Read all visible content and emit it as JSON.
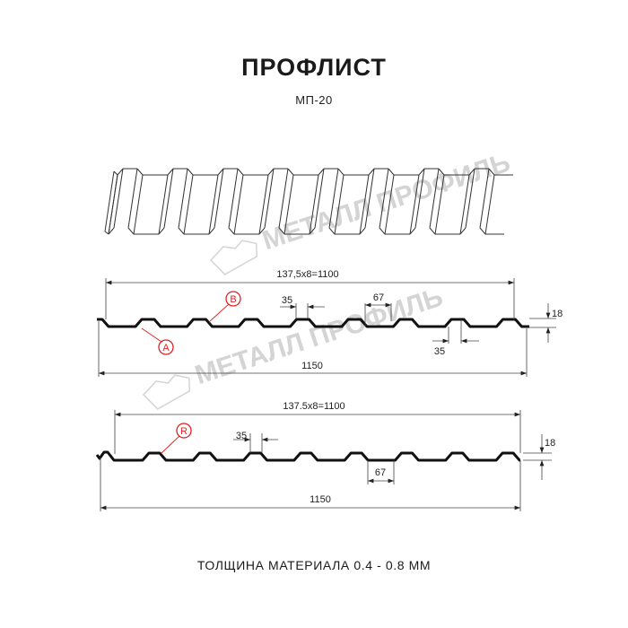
{
  "header": {
    "title": "ПРОФЛИСТ",
    "subtitle": "МП-20"
  },
  "watermark": {
    "text": "МЕТАЛЛ ПРОФИЛЬ"
  },
  "profile_1": {
    "pitch_dim": "137,5x8=1100",
    "total_dim": "1150",
    "top_width_dim": "35",
    "bottom_width_dim": "67",
    "lower_top_dim": "35",
    "height_dim": "18",
    "label_a": "A",
    "label_b": "B"
  },
  "profile_2": {
    "pitch_dim": "137.5x8=1100",
    "total_dim": "1150",
    "top_width_dim": "35",
    "bottom_width_dim": "67",
    "height_dim": "18",
    "label_r": "R"
  },
  "footer": {
    "thickness": "ТОЛЩИНА МАТЕРИАЛА 0.4 - 0.8 ММ"
  },
  "colors": {
    "line": "#111111",
    "marker": "#e02020",
    "watermark": "#d4d4d4"
  }
}
